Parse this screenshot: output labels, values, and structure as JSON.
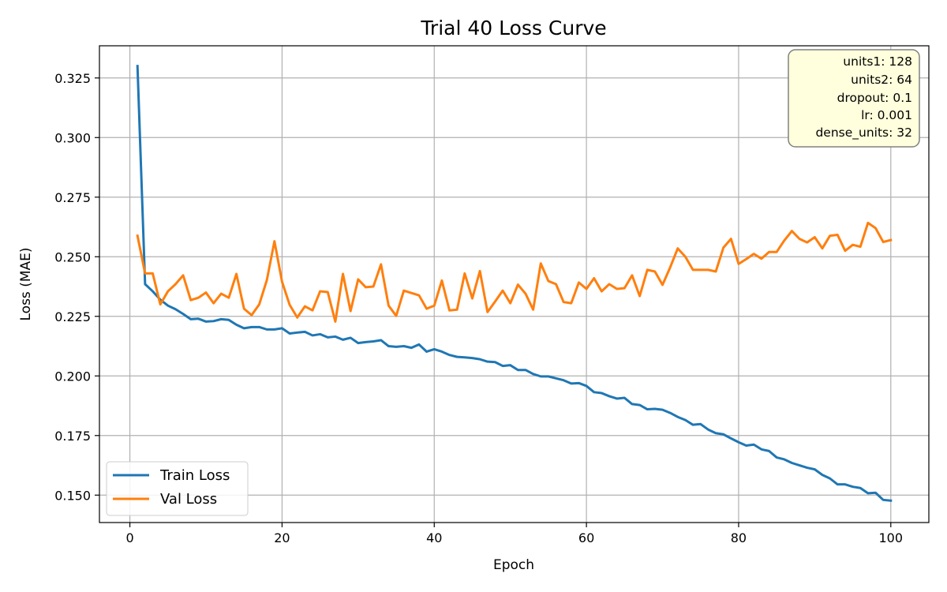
{
  "chart_data": {
    "type": "line",
    "title": "Trial 40 Loss Curve",
    "xlabel": "Epoch",
    "ylabel": "Loss (MAE)",
    "xlim": [
      -4,
      105
    ],
    "ylim": [
      0.1385,
      0.3385
    ],
    "xticks": [
      0,
      20,
      40,
      60,
      80,
      100
    ],
    "xtick_labels": [
      "0",
      "20",
      "40",
      "60",
      "80",
      "100"
    ],
    "yticks": [
      0.15,
      0.175,
      0.2,
      0.225,
      0.25,
      0.275,
      0.3,
      0.325
    ],
    "ytick_labels": [
      "0.150",
      "0.175",
      "0.200",
      "0.225",
      "0.250",
      "0.275",
      "0.300",
      "0.325"
    ],
    "grid": true,
    "legend_position": "lower-left",
    "x": [
      1,
      2,
      3,
      4,
      5,
      6,
      7,
      8,
      9,
      10,
      11,
      12,
      13,
      14,
      15,
      16,
      17,
      18,
      19,
      20,
      21,
      22,
      23,
      24,
      25,
      26,
      27,
      28,
      29,
      30,
      31,
      32,
      33,
      34,
      35,
      36,
      37,
      38,
      39,
      40,
      41,
      42,
      43,
      44,
      45,
      46,
      47,
      48,
      49,
      50,
      51,
      52,
      53,
      54,
      55,
      56,
      57,
      58,
      59,
      60,
      61,
      62,
      63,
      64,
      65,
      66,
      67,
      68,
      69,
      70,
      71,
      72,
      73,
      74,
      75,
      76,
      77,
      78,
      79,
      80,
      81,
      82,
      83,
      84,
      85,
      86,
      87,
      88,
      89,
      90,
      91,
      92,
      93,
      94,
      95,
      96,
      97,
      98,
      99,
      100
    ],
    "series": [
      {
        "name": "Train Loss",
        "color": "#1f77b4",
        "values": [
          0.33,
          0.2385,
          0.2355,
          0.232,
          0.2295,
          0.228,
          0.226,
          0.2238,
          0.224,
          0.2228,
          0.223,
          0.2238,
          0.2235,
          0.2215,
          0.22,
          0.2205,
          0.2205,
          0.2195,
          0.2195,
          0.22,
          0.2178,
          0.2182,
          0.2185,
          0.217,
          0.2175,
          0.2162,
          0.2165,
          0.2152,
          0.216,
          0.2138,
          0.2142,
          0.2145,
          0.215,
          0.2125,
          0.2122,
          0.2125,
          0.2118,
          0.2132,
          0.2102,
          0.2112,
          0.2102,
          0.2088,
          0.208,
          0.2078,
          0.2075,
          0.207,
          0.206,
          0.2058,
          0.2042,
          0.2045,
          0.2025,
          0.2025,
          0.2008,
          0.1998,
          0.1998,
          0.199,
          0.1982,
          0.1968,
          0.197,
          0.1958,
          0.1932,
          0.1928,
          0.1915,
          0.1905,
          0.1908,
          0.1882,
          0.1878,
          0.186,
          0.1862,
          0.1858,
          0.1845,
          0.1828,
          0.1815,
          0.1795,
          0.1798,
          0.1775,
          0.176,
          0.1755,
          0.1738,
          0.1722,
          0.1708,
          0.1712,
          0.1692,
          0.1685,
          0.1658,
          0.165,
          0.1635,
          0.1625,
          0.1615,
          0.1608,
          0.1585,
          0.157,
          0.1545,
          0.1545,
          0.1535,
          0.153,
          0.1508,
          0.151,
          0.148,
          0.1477
        ]
      },
      {
        "name": "Val Loss",
        "color": "#ff7f0e",
        "values": [
          0.2588,
          0.243,
          0.243,
          0.23,
          0.2355,
          0.2385,
          0.2422,
          0.2318,
          0.2328,
          0.235,
          0.2305,
          0.2345,
          0.2328,
          0.2428,
          0.2282,
          0.2255,
          0.23,
          0.2402,
          0.2565,
          0.2395,
          0.2298,
          0.2245,
          0.2292,
          0.2275,
          0.2355,
          0.2352,
          0.2228,
          0.2428,
          0.2272,
          0.2405,
          0.2372,
          0.2375,
          0.2468,
          0.2295,
          0.2252,
          0.2358,
          0.2348,
          0.2338,
          0.2282,
          0.2295,
          0.24,
          0.2275,
          0.2278,
          0.243,
          0.2325,
          0.244,
          0.2268,
          0.2312,
          0.2358,
          0.2305,
          0.2383,
          0.2345,
          0.2278,
          0.2472,
          0.2398,
          0.2385,
          0.231,
          0.2305,
          0.2392,
          0.2365,
          0.241,
          0.2355,
          0.2385,
          0.2365,
          0.2368,
          0.2422,
          0.2335,
          0.2445,
          0.2438,
          0.2382,
          0.2455,
          0.2535,
          0.25,
          0.2445,
          0.2445,
          0.2445,
          0.2438,
          0.2538,
          0.2575,
          0.247,
          0.249,
          0.2512,
          0.2492,
          0.252,
          0.252,
          0.2568,
          0.2608,
          0.2575,
          0.256,
          0.2582,
          0.2535,
          0.2588,
          0.2592,
          0.2525,
          0.255,
          0.2542,
          0.2642,
          0.262,
          0.2562,
          0.257
        ]
      }
    ],
    "annotation": {
      "position": "top-right",
      "lines": [
        "units1: 128",
        "units2: 64",
        "dropout: 0.1",
        "lr: 0.001",
        "dense_units: 32"
      ]
    }
  }
}
